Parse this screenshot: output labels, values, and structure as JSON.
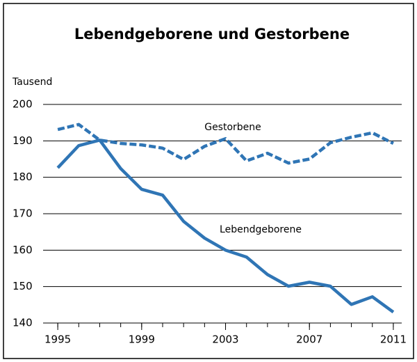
{
  "chart_data": {
    "type": "line",
    "title": "Lebendgeborene und Gestorbene",
    "y_label": "Tausend",
    "x": [
      1995,
      1996,
      1997,
      1998,
      1999,
      2000,
      2001,
      2002,
      2003,
      2004,
      2005,
      2006,
      2007,
      2008,
      2009,
      2010,
      2011
    ],
    "series": [
      {
        "name": "Gestorbene",
        "color": "#2f75b5",
        "dashed": true,
        "values": [
          193.1,
          194.5,
          190.2,
          189.3,
          188.9,
          188.0,
          184.9,
          188.5,
          190.6,
          184.5,
          186.6,
          183.9,
          185.0,
          189.5,
          191.0,
          192.2,
          189.3
        ]
      },
      {
        "name": "Lebendgeborene",
        "color": "#2f75b5",
        "dashed": false,
        "values": [
          182.6,
          188.7,
          190.2,
          182.4,
          176.7,
          175.1,
          167.9,
          163.3,
          160.0,
          158.1,
          153.3,
          150.1,
          151.2,
          150.1,
          145.1,
          147.2,
          143.0
        ]
      }
    ],
    "xlim": [
      1994.3,
      2011.4
    ],
    "xticks": [
      1995,
      1999,
      2003,
      2007,
      2011
    ],
    "ylim": [
      140,
      200
    ],
    "yticks": [
      140,
      150,
      160,
      170,
      180,
      190,
      200
    ],
    "grid": true
  }
}
